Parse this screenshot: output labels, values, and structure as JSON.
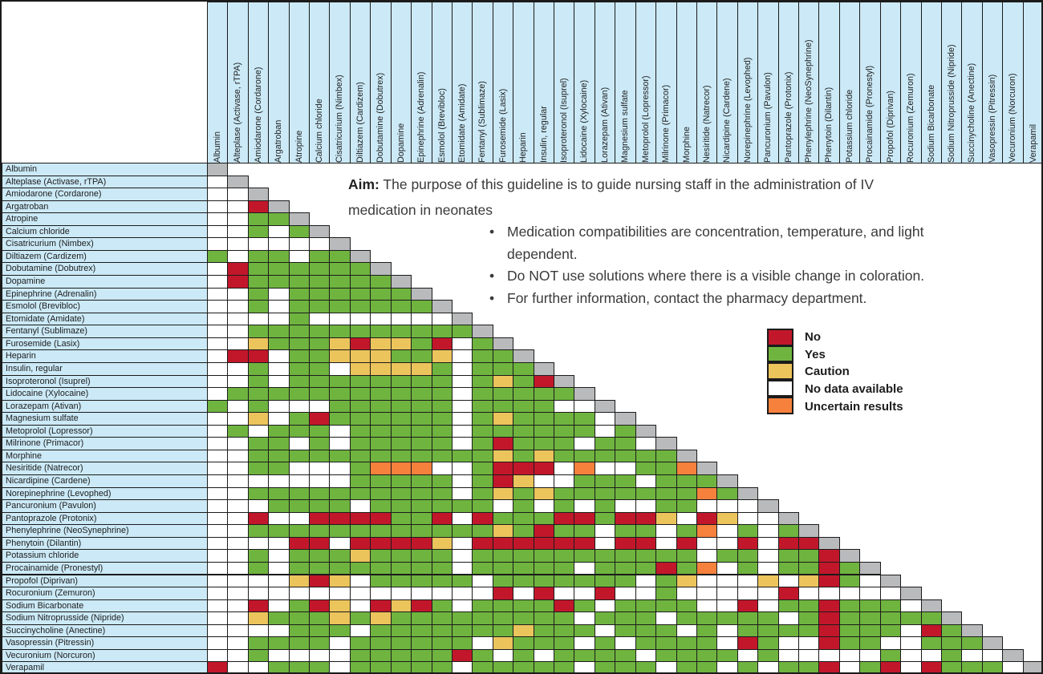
{
  "aim": {
    "label": "Aim:",
    "text": " The purpose of this guideline is to guide nursing staff in the administration of IV medication in neonates"
  },
  "bullets": [
    "Medication compatibilities are concentration, temperature, and light dependent.",
    "Do NOT use solutions where there is a visible change in coloration.",
    "For further information, contact the pharmacy department."
  ],
  "colors": {
    "G": "#6fb43f",
    "R": "#c2172b",
    "Y": "#ecc45c",
    "W": "#ffffff",
    "O": "#f5813d",
    "D": "#b9babc",
    "header_bg": "#cbe9f6",
    "grid_border": "#1b1b1b"
  },
  "chart_data": {
    "type": "heatmap",
    "subtype": "lower-triangular-compatibility-matrix",
    "categories": [
      "Albumin",
      "Alteplase (Activase, rTPA)",
      "Amiodarone (Cordarone)",
      "Argatroban",
      "Atropine",
      "Calcium chloride",
      "Cisatricurium (Nimbex)",
      "Diltiazem (Cardizem)",
      "Dobutamine (Dobutrex)",
      "Dopamine",
      "Epinephrine (Adrenalin)",
      "Esmolol (Brevibloc)",
      "Etomidate (Amidate)",
      "Fentanyl (Sublimaze)",
      "Furosemide (Lasix)",
      "Heparin",
      "Insulin, regular",
      "Isoproteronol (Isuprel)",
      "Lidocaine (Xylocaine)",
      "Lorazepam (Ativan)",
      "Magnesium sulfate",
      "Metoprolol (Lopressor)",
      "Milrinone (Primacor)",
      "Morphine",
      "Nesiritide (Natrecor)",
      "Nicardipine (Cardene)",
      "Norepinephrine (Levophed)",
      "Pancuronium (Pavulon)",
      "Pantoprazole (Protonix)",
      "Phenylephrine (NeoSynephrine)",
      "Phenytoin (Dilantin)",
      "Potassium chloride",
      "Procainamide (Pronestyl)",
      "Propofol (Diprivan)",
      "Rocuronium (Zemuron)",
      "Sodium Bicarbonate",
      "Sodium Nitroprusside (Nipride)",
      "Succinycholine (Anectine)",
      "Vasopressin (Pitressin)",
      "Vecuronium (Norcuron)",
      "Verapamil"
    ],
    "legend": [
      {
        "code": "R",
        "label": "No",
        "color": "#c2172b"
      },
      {
        "code": "G",
        "label": "Yes",
        "color": "#6fb43f"
      },
      {
        "code": "Y",
        "label": "Caution",
        "color": "#ecc45c"
      },
      {
        "code": "W",
        "label": "No data available",
        "color": "#ffffff"
      },
      {
        "code": "O",
        "label": "Uncertain results",
        "color": "#f5813d"
      }
    ],
    "diagonal_color": "#b9babc",
    "rows": [
      "",
      "W",
      "WW",
      "WWR",
      "WWGG",
      "WWGWG",
      "WWWWWW",
      "GWGGWGG",
      "WRGGGGGG",
      "WRGGGGGGG",
      "WWGWGGGGGG",
      "WWGWGGGGGGG",
      "WWWWGWWWWWWW",
      "WWGGGGGGGGGGG",
      "WWYGGGYRYYGRWG",
      "WRRWGGYYYGGYWGG",
      "WWGWGGWYYYYGWGGG",
      "WWGWGGGGGGGGWGYGR",
      "WGGGGGGGGGGGWGGGGG",
      "GWGWWWGGGGGGWGGGGWW",
      "WWYWGRGGGGGGWGYGGGGW",
      "WGWGGGWGGGGGWGGGGGGWG",
      "WWGGWGWGGGGGWGRGGGWGGW",
      "WWGGGGGGGGGGGGYGYGGGGGG",
      "WWGGWWWGOOOWWGRRRWOWWGGO",
      "WWWWWWWGGGGGWGRYWWGGGWGGG",
      "WWGGGGGGGGGGWGYGYGGGGGGGOG",
      "WWWGGGGWGGGGGGWGWGWGWWGGWWW",
      "WWRWWRRRRGGRWRGGGRRGRRYWRYWW",
      "WWGGGGGGGGGGGGYGRGGWGGWGOWGWG",
      "WWWWRRWRRRRYWRRRRRRWRRWRWWRWRR",
      "WWGWGGGYGGGGWGGGGGGGGGGGWGGWGGR",
      "WWGWGGGGGGGGWGGGGGWGGGRGOWGWGGRG",
      "WWWWYRYWGGGGGWGGGGGGGWGYWWWYWYRGW",
      "WWWWWWWWWWWWWWRWRWWRWWGWWWWWRWWWWW",
      "WWRWGRYWRYRGWGGGGRGWGGGGWWRWGGRGGGW",
      "WWYGGGYGYGGGGGGGGGWGGGWGGGGGWGRGGGGG",
      "WWWWGGGWGGGGGGGYGGGWGGGWGWGGGGRGGGWRG",
      "WWGGGGWGGGGGGWYGGGWGWGGGGWRGWWRGGWWGGG",
      "WWGWWWWGGGGGRGWGWGGGGWGGGGWGWWWWWGWWGWW",
      "RWWGGGWGGGGGWGGGGGWGGGWGGWGWGGRWGRWRGGGW"
    ]
  }
}
